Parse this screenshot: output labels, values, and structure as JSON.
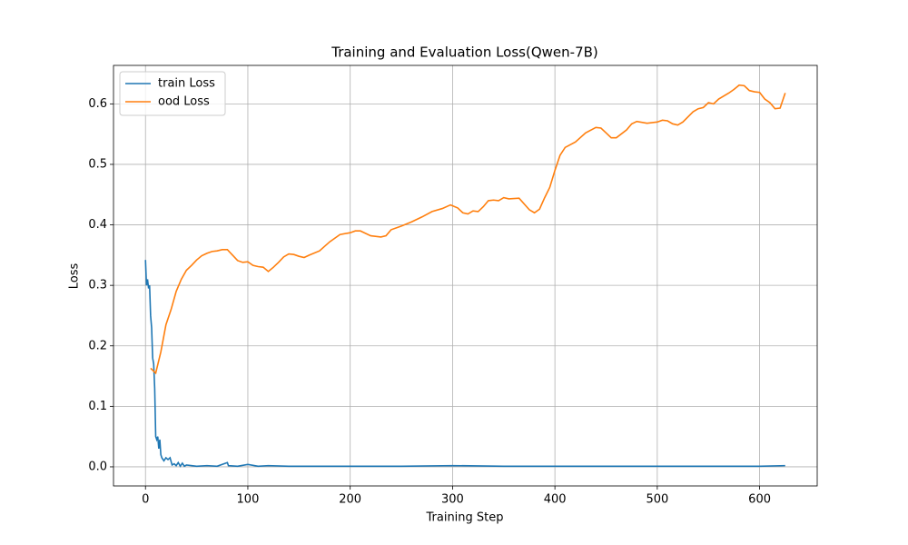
{
  "chart_data": {
    "type": "line",
    "title": "Training and Evaluation Loss(Qwen-7B)",
    "x_label": "Training Step",
    "y_label": "Loss",
    "xlim": [
      -31.25,
      656.25
    ],
    "ylim": [
      -0.0316,
      0.6636
    ],
    "xticks": [
      0,
      100,
      200,
      300,
      400,
      500,
      600
    ],
    "yticks": [
      {
        "value": 0,
        "label": "0.0"
      },
      0.1,
      0.2,
      0.3,
      0.4,
      0.5,
      0.6
    ],
    "grid": true,
    "legend": "upper-left",
    "series": [
      {
        "name": "train Loss",
        "color": "#1f77b4",
        "x": [
          0,
          1,
          2,
          3,
          4,
          5,
          6,
          7,
          8,
          9,
          10,
          11,
          12,
          13,
          14,
          15,
          16,
          18,
          20,
          22,
          24,
          26,
          28,
          30,
          32,
          34,
          36,
          38,
          40,
          50,
          60,
          70,
          80,
          81,
          90,
          100,
          110,
          120,
          140,
          160,
          200,
          250,
          300,
          350,
          400,
          450,
          500,
          550,
          600,
          625
        ],
        "values": [
          0.342,
          0.3,
          0.31,
          0.295,
          0.3,
          0.25,
          0.23,
          0.18,
          0.17,
          0.13,
          0.05,
          0.045,
          0.05,
          0.03,
          0.045,
          0.02,
          0.015,
          0.01,
          0.015,
          0.012,
          0.015,
          0.003,
          0.005,
          0.002,
          0.007,
          0.001,
          0.006,
          0.001,
          0.003,
          0.001,
          0.002,
          0.001,
          0.007,
          0.002,
          0.001,
          0.004,
          0.001,
          0.002,
          0.001,
          0.001,
          0.001,
          0.001,
          0.002,
          0.001,
          0.001,
          0.001,
          0.001,
          0.001,
          0.001,
          0.002
        ]
      },
      {
        "name": "ood Loss",
        "color": "#ff7f0e",
        "x": [
          5,
          10,
          15,
          20,
          25,
          30,
          35,
          40,
          45,
          50,
          55,
          60,
          65,
          70,
          75,
          80,
          85,
          90,
          95,
          100,
          105,
          110,
          115,
          120,
          125,
          130,
          135,
          140,
          145,
          150,
          155,
          160,
          170,
          180,
          190,
          200,
          205,
          210,
          220,
          230,
          235,
          240,
          250,
          260,
          270,
          280,
          290,
          298,
          305,
          310,
          315,
          320,
          325,
          330,
          335,
          340,
          345,
          350,
          355,
          365,
          375,
          380,
          385,
          390,
          395,
          400,
          405,
          410,
          420,
          430,
          440,
          445,
          450,
          455,
          460,
          470,
          475,
          480,
          490,
          500,
          505,
          510,
          515,
          520,
          525,
          535,
          540,
          545,
          550,
          555,
          560,
          570,
          575,
          580,
          585,
          590,
          595,
          600,
          605,
          610,
          615,
          620,
          625
        ],
        "values": [
          0.163,
          0.155,
          0.19,
          0.235,
          0.26,
          0.29,
          0.31,
          0.325,
          0.333,
          0.342,
          0.349,
          0.353,
          0.356,
          0.357,
          0.359,
          0.359,
          0.35,
          0.341,
          0.338,
          0.339,
          0.333,
          0.331,
          0.33,
          0.323,
          0.33,
          0.338,
          0.347,
          0.352,
          0.351,
          0.348,
          0.346,
          0.35,
          0.357,
          0.372,
          0.384,
          0.387,
          0.39,
          0.39,
          0.382,
          0.38,
          0.382,
          0.392,
          0.398,
          0.405,
          0.413,
          0.422,
          0.427,
          0.433,
          0.428,
          0.42,
          0.418,
          0.423,
          0.422,
          0.43,
          0.44,
          0.441,
          0.44,
          0.445,
          0.443,
          0.444,
          0.425,
          0.42,
          0.426,
          0.445,
          0.462,
          0.49,
          0.515,
          0.528,
          0.537,
          0.552,
          0.561,
          0.56,
          0.552,
          0.544,
          0.544,
          0.557,
          0.567,
          0.571,
          0.568,
          0.57,
          0.573,
          0.572,
          0.567,
          0.565,
          0.57,
          0.587,
          0.592,
          0.594,
          0.602,
          0.6,
          0.608,
          0.618,
          0.624,
          0.631,
          0.63,
          0.622,
          0.62,
          0.619,
          0.608,
          0.602,
          0.592,
          0.593,
          0.618
        ]
      }
    ]
  }
}
